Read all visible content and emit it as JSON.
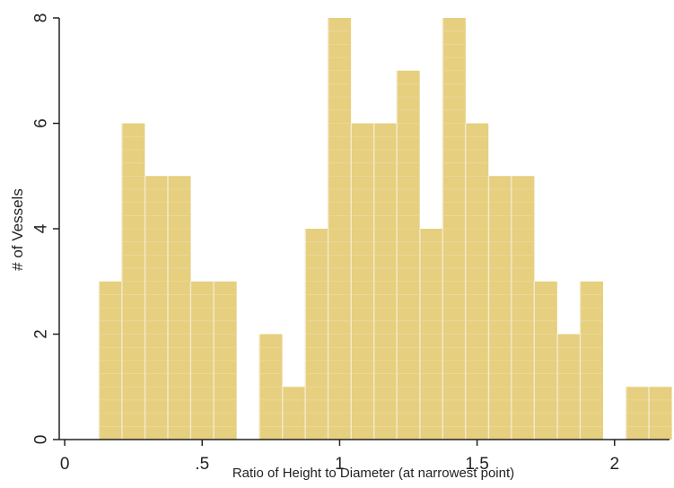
{
  "chart_data": {
    "type": "bar",
    "subtype": "histogram",
    "xlabel": "Ratio of Height to Diameter (at narrowest point)",
    "ylabel": "# of Vessels",
    "bin_width": 0.0833,
    "bins": [
      {
        "x_start": 0.125,
        "count": 3
      },
      {
        "x_start": 0.208,
        "count": 6
      },
      {
        "x_start": 0.292,
        "count": 5
      },
      {
        "x_start": 0.375,
        "count": 5
      },
      {
        "x_start": 0.458,
        "count": 3
      },
      {
        "x_start": 0.542,
        "count": 3
      },
      {
        "x_start": 0.625,
        "count": 0
      },
      {
        "x_start": 0.708,
        "count": 2
      },
      {
        "x_start": 0.792,
        "count": 1
      },
      {
        "x_start": 0.875,
        "count": 4
      },
      {
        "x_start": 0.958,
        "count": 8
      },
      {
        "x_start": 1.042,
        "count": 6
      },
      {
        "x_start": 1.125,
        "count": 6
      },
      {
        "x_start": 1.208,
        "count": 7
      },
      {
        "x_start": 1.292,
        "count": 4
      },
      {
        "x_start": 1.375,
        "count": 8
      },
      {
        "x_start": 1.458,
        "count": 6
      },
      {
        "x_start": 1.542,
        "count": 5
      },
      {
        "x_start": 1.625,
        "count": 5
      },
      {
        "x_start": 1.708,
        "count": 3
      },
      {
        "x_start": 1.792,
        "count": 2
      },
      {
        "x_start": 1.875,
        "count": 3
      },
      {
        "x_start": 1.958,
        "count": 0
      },
      {
        "x_start": 2.042,
        "count": 1
      },
      {
        "x_start": 2.125,
        "count": 1
      }
    ],
    "xticks": [
      0,
      0.5,
      1,
      1.5,
      2
    ],
    "xtick_labels": [
      "0",
      ".5",
      "1",
      "1.5",
      "2"
    ],
    "yticks": [
      0,
      2,
      4,
      6,
      8
    ],
    "ytick_labels": [
      "0",
      "2",
      "4",
      "6",
      "8"
    ],
    "xlim": [
      -0.02,
      2.2
    ],
    "ylim": [
      0,
      8
    ],
    "bar_color": "#e6cf7e",
    "bar_grid_color": "#f4ead0",
    "axis_color": "#222222",
    "grid": false
  }
}
